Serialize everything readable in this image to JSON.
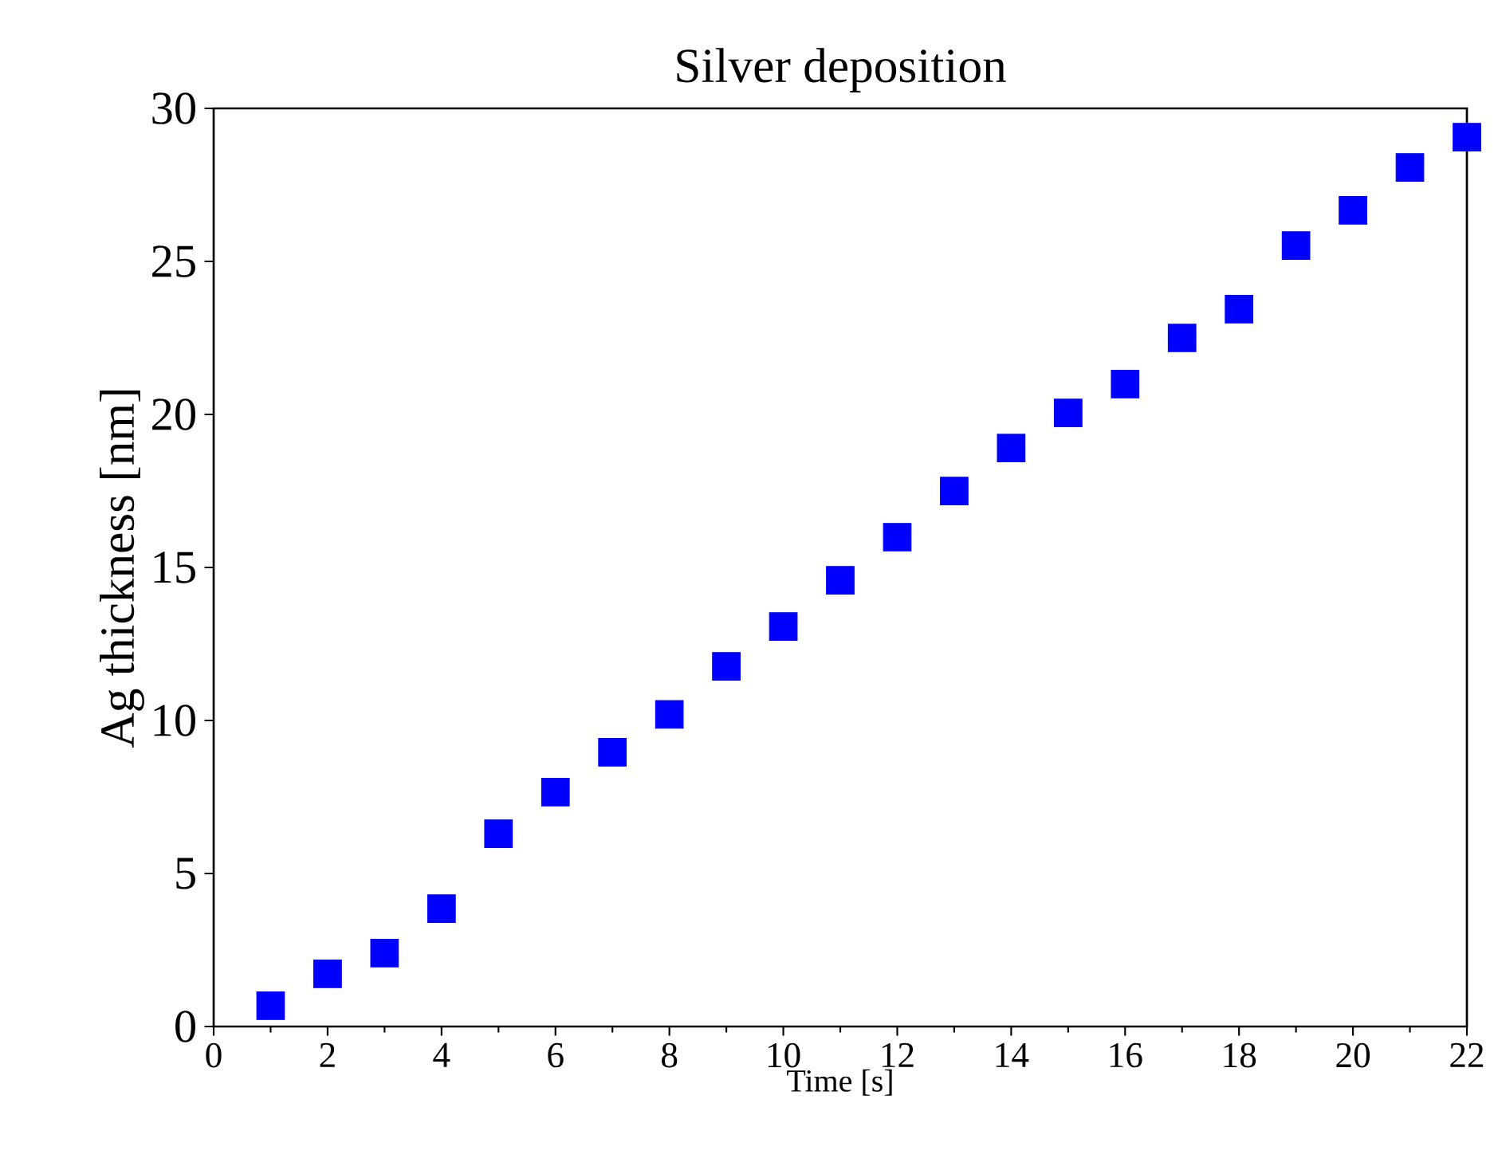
{
  "chart_data": {
    "type": "scatter",
    "title": "Silver deposition",
    "xlabel": "Time [s]",
    "ylabel": "Ag thickness [nm]",
    "x": [
      1,
      2,
      3,
      4,
      5,
      6,
      7,
      8,
      9,
      10,
      11,
      12,
      13,
      14,
      15,
      16,
      17,
      18,
      19,
      20,
      21,
      22
    ],
    "values": [
      0.68,
      1.72,
      2.4,
      3.85,
      6.3,
      7.66,
      8.96,
      10.2,
      11.77,
      13.07,
      14.58,
      15.99,
      17.5,
      18.9,
      20.05,
      20.99,
      22.5,
      23.44,
      25.52,
      26.67,
      28.07,
      29.06
    ],
    "color": "#0000ff",
    "marker": "square",
    "xlim": [
      0,
      22
    ],
    "xticks": [
      0,
      2,
      4,
      6,
      8,
      10,
      12,
      14,
      16,
      18,
      20,
      22
    ],
    "ylim": [
      0,
      30
    ],
    "yticks": [
      0,
      5,
      10,
      15,
      20,
      25,
      30
    ],
    "grid": false
  }
}
